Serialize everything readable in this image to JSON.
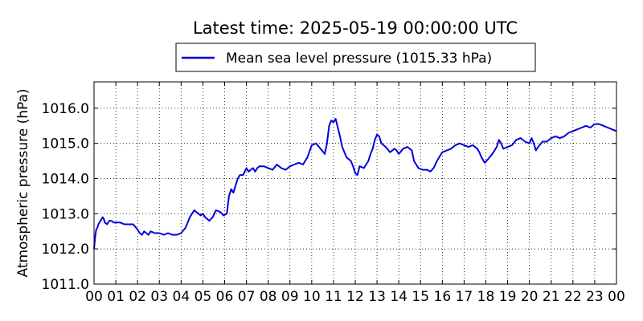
{
  "chart_data": {
    "type": "line",
    "title": "Latest time: 2025-05-19 00:00:00 UTC",
    "ylabel": "Atmospheric pressure (hPa)",
    "xlabel": "",
    "legend_position": "top-center",
    "grid": true,
    "xlim": [
      0,
      24
    ],
    "ylim": [
      1011.0,
      1016.75
    ],
    "x_ticks": [
      "00",
      "01",
      "02",
      "03",
      "04",
      "05",
      "06",
      "07",
      "08",
      "09",
      "10",
      "11",
      "12",
      "13",
      "14",
      "15",
      "16",
      "17",
      "18",
      "19",
      "20",
      "21",
      "22",
      "23",
      "00"
    ],
    "y_ticks": [
      "1011.0",
      "1012.0",
      "1013.0",
      "1014.0",
      "1015.0",
      "1016.0"
    ],
    "series": [
      {
        "name": "Mean sea level pressure (1015.33 hPa)",
        "color": "#0000dd",
        "x": [
          0.0,
          0.05,
          0.1,
          0.15,
          0.2,
          0.3,
          0.4,
          0.45,
          0.5,
          0.6,
          0.7,
          0.8,
          0.9,
          1.0,
          1.2,
          1.4,
          1.6,
          1.8,
          2.0,
          2.1,
          2.2,
          2.3,
          2.4,
          2.5,
          2.6,
          2.8,
          3.0,
          3.2,
          3.4,
          3.6,
          3.8,
          4.0,
          4.2,
          4.4,
          4.6,
          4.8,
          4.9,
          5.0,
          5.1,
          5.3,
          5.45,
          5.6,
          5.8,
          5.95,
          6.1,
          6.2,
          6.3,
          6.4,
          6.5,
          6.6,
          6.7,
          6.85,
          7.0,
          7.1,
          7.2,
          7.3,
          7.4,
          7.5,
          7.6,
          7.8,
          8.0,
          8.2,
          8.4,
          8.6,
          8.8,
          9.0,
          9.2,
          9.4,
          9.6,
          9.8,
          10.0,
          10.2,
          10.4,
          10.6,
          10.7,
          10.8,
          10.9,
          11.0,
          11.1,
          11.2,
          11.3,
          11.4,
          11.6,
          11.8,
          11.9,
          12.0,
          12.1,
          12.2,
          12.4,
          12.6,
          12.7,
          12.8,
          12.9,
          13.0,
          13.1,
          13.2,
          13.4,
          13.6,
          13.8,
          13.9,
          14.0,
          14.2,
          14.4,
          14.6,
          14.7,
          14.9,
          15.1,
          15.3,
          15.45,
          15.6,
          15.75,
          15.9,
          16.0,
          16.2,
          16.4,
          16.6,
          16.8,
          17.0,
          17.2,
          17.4,
          17.6,
          17.7,
          17.8,
          17.95,
          18.1,
          18.3,
          18.5,
          18.6,
          18.7,
          18.8,
          19.0,
          19.2,
          19.4,
          19.6,
          19.8,
          20.0,
          20.1,
          20.2,
          20.3,
          20.4,
          20.6,
          20.8,
          21.0,
          21.2,
          21.4,
          21.6,
          21.8,
          22.0,
          22.2,
          22.4,
          22.6,
          22.8,
          23.0,
          23.2,
          23.4,
          23.6,
          23.8,
          24.0
        ],
        "y": [
          1012.0,
          1012.35,
          1012.55,
          1012.6,
          1012.7,
          1012.8,
          1012.9,
          1012.85,
          1012.75,
          1012.7,
          1012.8,
          1012.8,
          1012.75,
          1012.75,
          1012.75,
          1012.7,
          1012.7,
          1012.7,
          1012.55,
          1012.45,
          1012.4,
          1012.5,
          1012.45,
          1012.4,
          1012.5,
          1012.45,
          1012.45,
          1012.4,
          1012.45,
          1012.4,
          1012.4,
          1012.45,
          1012.6,
          1012.9,
          1013.1,
          1013.0,
          1012.95,
          1013.0,
          1012.9,
          1012.8,
          1012.9,
          1013.1,
          1013.05,
          1012.95,
          1013.0,
          1013.5,
          1013.7,
          1013.6,
          1013.8,
          1014.0,
          1014.1,
          1014.1,
          1014.3,
          1014.2,
          1014.25,
          1014.3,
          1014.2,
          1014.3,
          1014.35,
          1014.35,
          1014.3,
          1014.25,
          1014.4,
          1014.3,
          1014.25,
          1014.35,
          1014.4,
          1014.45,
          1014.4,
          1014.6,
          1014.95,
          1015.0,
          1014.85,
          1014.7,
          1015.0,
          1015.5,
          1015.65,
          1015.6,
          1015.7,
          1015.45,
          1015.2,
          1014.9,
          1014.6,
          1014.5,
          1014.35,
          1014.15,
          1014.1,
          1014.35,
          1014.3,
          1014.5,
          1014.7,
          1014.85,
          1015.1,
          1015.25,
          1015.2,
          1015.0,
          1014.9,
          1014.75,
          1014.85,
          1014.8,
          1014.7,
          1014.85,
          1014.9,
          1014.8,
          1014.5,
          1014.3,
          1014.25,
          1014.25,
          1014.2,
          1014.3,
          1014.5,
          1014.65,
          1014.75,
          1014.8,
          1014.85,
          1014.95,
          1015.0,
          1014.95,
          1014.9,
          1014.95,
          1014.85,
          1014.75,
          1014.6,
          1014.45,
          1014.55,
          1014.7,
          1014.9,
          1015.1,
          1015.0,
          1014.85,
          1014.9,
          1014.95,
          1015.1,
          1015.15,
          1015.05,
          1015.0,
          1015.15,
          1015.0,
          1014.8,
          1014.9,
          1015.05,
          1015.05,
          1015.15,
          1015.2,
          1015.15,
          1015.2,
          1015.3,
          1015.35,
          1015.4,
          1015.45,
          1015.5,
          1015.45,
          1015.55,
          1015.55,
          1015.5,
          1015.45,
          1015.4,
          1015.35
        ]
      }
    ]
  }
}
